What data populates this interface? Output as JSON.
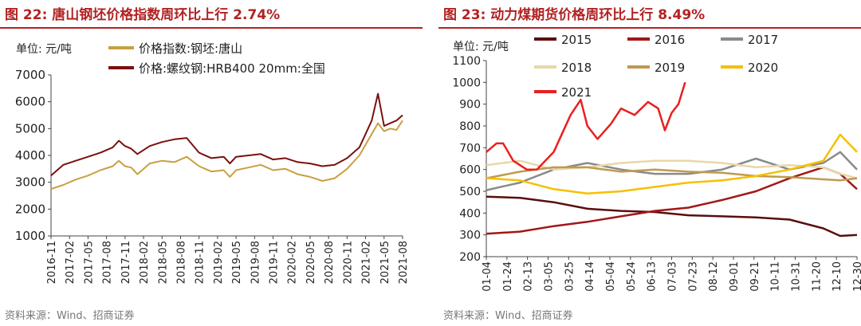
{
  "panels": [
    {
      "title": "图 22:  唐山钢坯价格指数周环比上行 2.74%",
      "source": "资料来源：Wind、招商证券"
    },
    {
      "title": "图 23:  动力煤期货价格周环比上行 8.49%",
      "source": "资料来源：Wind、招商证券"
    }
  ],
  "chart_data": [
    {
      "type": "line",
      "title": "唐山钢坯价格指数周环比上行 2.74%",
      "ylabel": "单位: 元/吨",
      "ylim": [
        1000,
        7000
      ],
      "yticks": [
        1000,
        2000,
        3000,
        4000,
        5000,
        6000,
        7000
      ],
      "xlim": [
        0,
        57
      ],
      "categories": [
        "2016-11",
        "2017-02",
        "2017-05",
        "2017-08",
        "2017-11",
        "2018-02",
        "2018-05",
        "2018-08",
        "2018-11",
        "2019-02",
        "2019-05",
        "2019-08",
        "2019-11",
        "2020-02",
        "2020-05",
        "2020-08",
        "2020-11",
        "2021-02",
        "2021-05",
        "2021-08"
      ],
      "series": [
        {
          "name": "价格指数:钢坯:唐山",
          "color": "#c8a040",
          "x": [
            0,
            2,
            4,
            6,
            8,
            10,
            11,
            12,
            13,
            14,
            16,
            18,
            20,
            22,
            24,
            26,
            28,
            29,
            30,
            32,
            34,
            36,
            38,
            40,
            42,
            44,
            46,
            48,
            50,
            51,
            52,
            53,
            54,
            55,
            56,
            57
          ],
          "y": [
            2750,
            2900,
            3100,
            3250,
            3450,
            3600,
            3800,
            3600,
            3550,
            3300,
            3700,
            3800,
            3750,
            3950,
            3600,
            3400,
            3450,
            3200,
            3450,
            3550,
            3650,
            3450,
            3500,
            3300,
            3200,
            3050,
            3150,
            3500,
            4000,
            4400,
            4800,
            5200,
            4900,
            5000,
            4950,
            5300
          ]
        },
        {
          "name": "价格:螺纹钢:HRB400 20mm:全国",
          "color": "#7a1010",
          "x": [
            0,
            2,
            4,
            6,
            8,
            10,
            11,
            12,
            13,
            14,
            16,
            18,
            20,
            22,
            24,
            26,
            28,
            29,
            30,
            32,
            34,
            36,
            38,
            40,
            42,
            44,
            46,
            48,
            50,
            51,
            52,
            53,
            54,
            55,
            56,
            57
          ],
          "y": [
            3250,
            3650,
            3800,
            3950,
            4100,
            4300,
            4550,
            4350,
            4250,
            4050,
            4350,
            4500,
            4600,
            4650,
            4100,
            3900,
            3950,
            3700,
            3950,
            4000,
            4050,
            3850,
            3900,
            3750,
            3700,
            3600,
            3650,
            3900,
            4300,
            4800,
            5300,
            6300,
            5100,
            5200,
            5300,
            5500
          ]
        }
      ]
    },
    {
      "type": "line",
      "title": "动力煤期货价格周环比上行 8.49%",
      "ylabel": "单位: 元/吨",
      "ylim": [
        200,
        1100
      ],
      "yticks": [
        200,
        300,
        400,
        500,
        600,
        700,
        800,
        900,
        1000,
        1100
      ],
      "xlim": [
        0,
        22
      ],
      "categories": [
        "01-04",
        "01-24",
        "02-13",
        "03-05",
        "03-25",
        "04-14",
        "05-04",
        "05-24",
        "06-13",
        "07-03",
        "07-23",
        "08-12",
        "09-01",
        "09-21",
        "10-11",
        "10-31",
        "11-20",
        "12-10",
        "12-30"
      ],
      "series": [
        {
          "name": "2015",
          "color": "#5a0e0e",
          "x": [
            0,
            2,
            4,
            6,
            8,
            10,
            12,
            14,
            16,
            18,
            20,
            21,
            22
          ],
          "y": [
            475,
            470,
            450,
            420,
            410,
            405,
            390,
            385,
            380,
            370,
            330,
            295,
            300
          ]
        },
        {
          "name": "2016",
          "color": "#a01818",
          "x": [
            0,
            2,
            4,
            6,
            8,
            10,
            12,
            14,
            16,
            18,
            20,
            21,
            22
          ],
          "y": [
            305,
            315,
            340,
            360,
            385,
            410,
            425,
            460,
            500,
            560,
            610,
            580,
            510
          ]
        },
        {
          "name": "2017",
          "color": "#8a8a8a",
          "x": [
            0,
            2,
            4,
            6,
            8,
            10,
            12,
            14,
            16,
            18,
            20,
            21,
            22
          ],
          "y": [
            505,
            540,
            600,
            630,
            600,
            580,
            580,
            600,
            650,
            600,
            630,
            680,
            600
          ]
        },
        {
          "name": "2018",
          "color": "#e8d8a8",
          "x": [
            0,
            2,
            4,
            6,
            8,
            10,
            12,
            14,
            16,
            18,
            20,
            21,
            22
          ],
          "y": [
            620,
            640,
            600,
            610,
            630,
            640,
            640,
            630,
            610,
            620,
            610,
            580,
            560
          ]
        },
        {
          "name": "2019",
          "color": "#c09a50",
          "x": [
            0,
            2,
            4,
            6,
            8,
            10,
            12,
            14,
            16,
            18,
            20,
            21,
            22
          ],
          "y": [
            560,
            590,
            610,
            610,
            590,
            600,
            590,
            585,
            570,
            565,
            555,
            550,
            560
          ]
        },
        {
          "name": "2020",
          "color": "#f5c000",
          "x": [
            0,
            2,
            4,
            6,
            8,
            10,
            12,
            14,
            16,
            18,
            20,
            21,
            22
          ],
          "y": [
            560,
            550,
            510,
            490,
            500,
            520,
            540,
            550,
            570,
            600,
            640,
            760,
            680
          ]
        },
        {
          "name": "2021",
          "color": "#e82020",
          "x": [
            0,
            0.6,
            1,
            1.6,
            2.4,
            3,
            4,
            5,
            5.6,
            6,
            6.6,
            7.4,
            8,
            8.8,
            9.6,
            10.2,
            10.6,
            11,
            11.4,
            11.8
          ],
          "y": [
            680,
            720,
            720,
            640,
            600,
            600,
            680,
            850,
            920,
            800,
            740,
            810,
            880,
            850,
            910,
            880,
            780,
            860,
            900,
            1000
          ]
        }
      ]
    }
  ]
}
